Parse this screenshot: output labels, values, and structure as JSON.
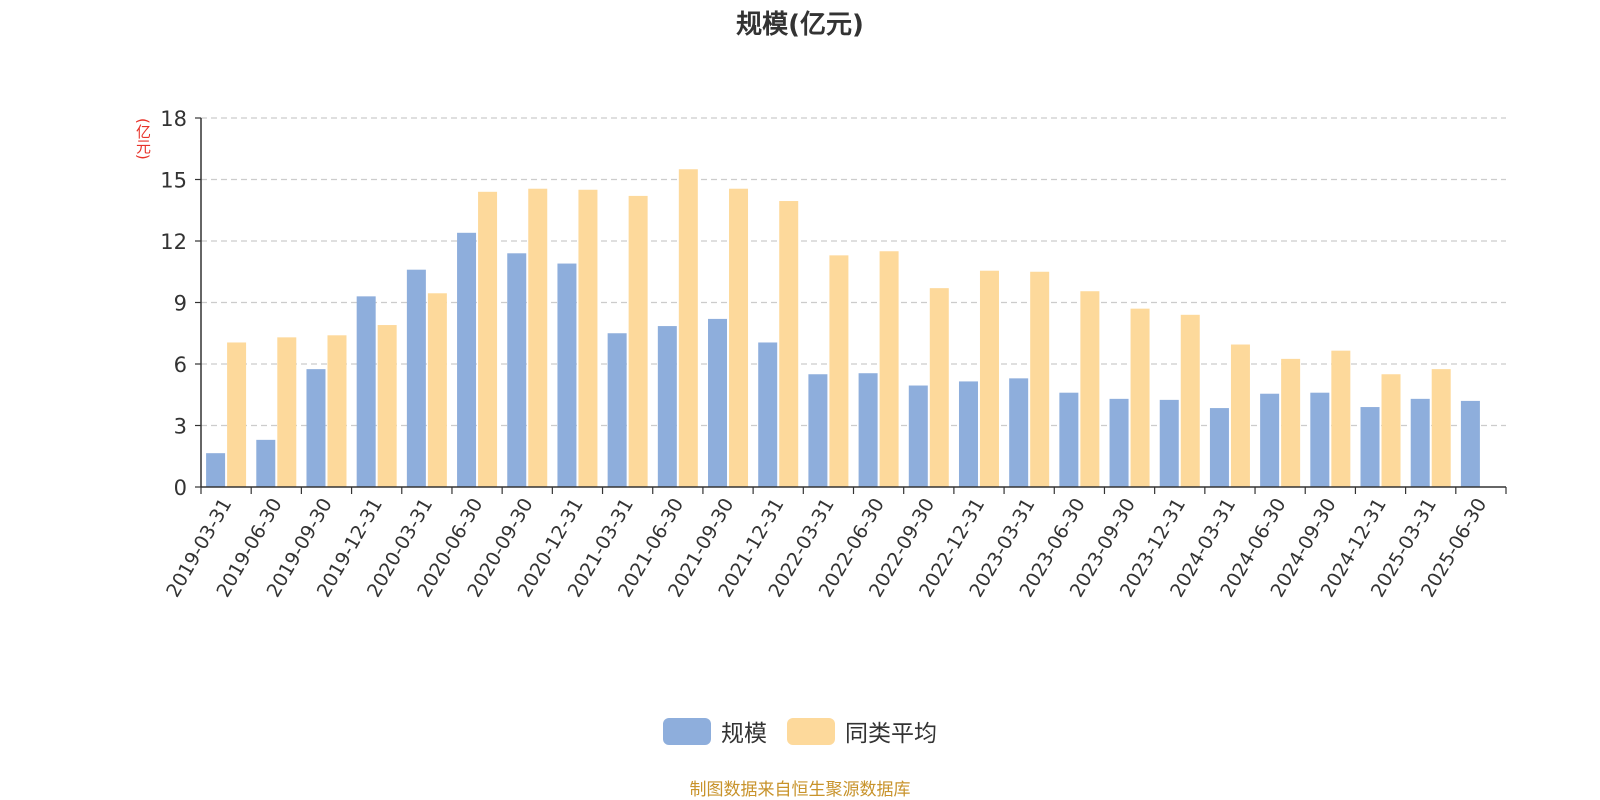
{
  "chart_data": {
    "type": "bar",
    "title": "规模(亿元)",
    "ylabel": "(亿元)",
    "ylim": [
      0,
      18
    ],
    "yticks": [
      0,
      3,
      6,
      9,
      12,
      15,
      18
    ],
    "grid": true,
    "legend_position": "bottom-center",
    "categories": [
      "2019-03-31",
      "2019-06-30",
      "2019-09-30",
      "2019-12-31",
      "2020-03-31",
      "2020-06-30",
      "2020-09-30",
      "2020-12-31",
      "2021-03-31",
      "2021-06-30",
      "2021-09-30",
      "2021-12-31",
      "2022-03-31",
      "2022-06-30",
      "2022-09-30",
      "2022-12-31",
      "2023-03-31",
      "2023-06-30",
      "2023-09-30",
      "2023-12-31",
      "2024-03-31",
      "2024-06-30",
      "2024-09-30",
      "2024-12-31",
      "2025-03-31",
      "2025-06-30"
    ],
    "series": [
      {
        "name": "规模",
        "color": "#8eaedc",
        "values": [
          1.65,
          2.3,
          5.75,
          9.3,
          10.6,
          12.4,
          11.4,
          10.9,
          7.5,
          7.85,
          8.2,
          7.05,
          5.5,
          5.55,
          4.95,
          5.15,
          5.3,
          4.6,
          4.3,
          4.25,
          3.85,
          4.55,
          4.6,
          3.9,
          4.3,
          4.2
        ]
      },
      {
        "name": "同类平均",
        "color": "#fdd99b",
        "values": [
          7.05,
          7.3,
          7.4,
          7.9,
          9.45,
          14.4,
          14.55,
          14.5,
          14.2,
          15.5,
          14.55,
          13.95,
          11.3,
          11.5,
          9.7,
          10.55,
          10.5,
          9.55,
          8.7,
          8.4,
          6.95,
          6.25,
          6.65,
          5.5,
          5.75,
          null
        ]
      }
    ]
  },
  "footer": {
    "source": "制图数据来自恒生聚源数据库"
  }
}
